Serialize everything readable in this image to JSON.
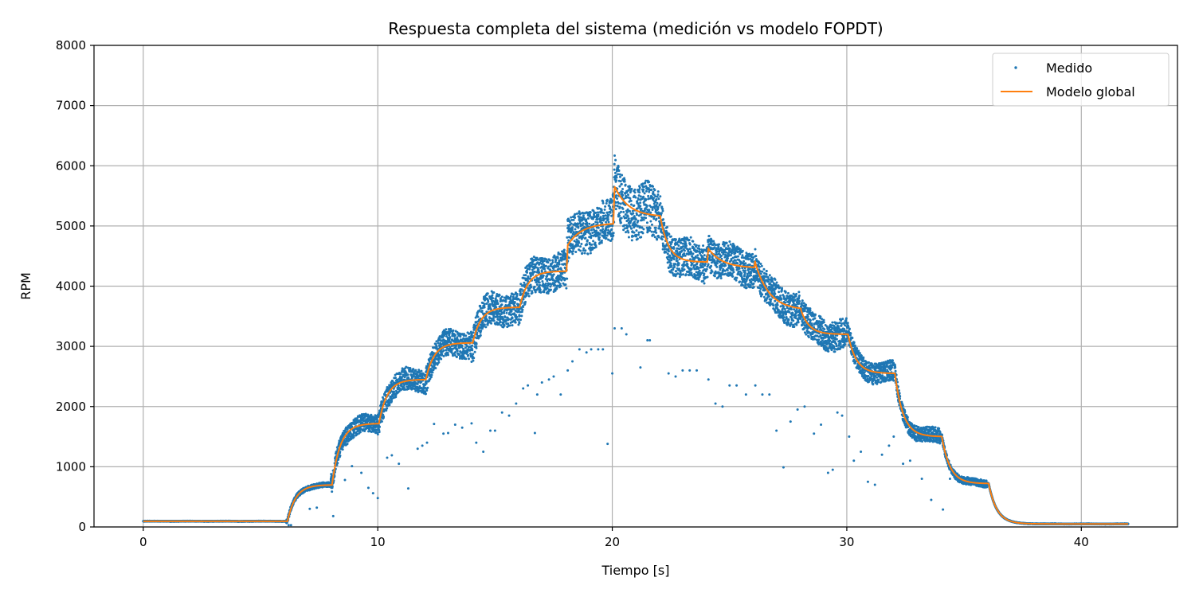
{
  "chart_data": {
    "type": "scatter",
    "title": "Respuesta completa del sistema (medición vs modelo FOPDT)",
    "xlabel": "Tiempo [s]",
    "ylabel": "RPM",
    "xlim": [
      -2.1,
      44.1
    ],
    "ylim": [
      0,
      8000
    ],
    "xticks": [
      0,
      10,
      20,
      30,
      40
    ],
    "yticks": [
      0,
      1000,
      2000,
      3000,
      4000,
      5000,
      6000,
      7000,
      8000
    ],
    "grid": true,
    "legend_position": "top-right",
    "colors": {
      "measured": "#1f77b4",
      "model": "#ff7f0e",
      "grid": "#b0b0b0"
    },
    "series": [
      {
        "name": "Medido",
        "kind": "scatter",
        "stages": [
          {
            "t0": 0,
            "t1": 6.1,
            "level": 95,
            "spread": 10
          },
          {
            "t0": 6.1,
            "t1": 8.0,
            "level": 650,
            "spread": 80
          },
          {
            "t0": 8.0,
            "t1": 10.0,
            "level": 1720,
            "spread": 300
          },
          {
            "t0": 10.0,
            "t1": 12.0,
            "level": 2450,
            "spread": 380
          },
          {
            "t0": 12.0,
            "t1": 14.0,
            "level": 3050,
            "spread": 450
          },
          {
            "t0": 14.0,
            "t1": 16.0,
            "level": 3650,
            "spread": 550
          },
          {
            "t0": 16.0,
            "t1": 18.0,
            "level": 4250,
            "spread": 600
          },
          {
            "t0": 18.0,
            "t1": 20.0,
            "level": 5000,
            "spread": 700
          },
          {
            "t0": 20.0,
            "t1": 22.0,
            "level": 5500,
            "spread": 900
          },
          {
            "t0": 22.0,
            "t1": 24.0,
            "level": 4450,
            "spread": 650
          },
          {
            "t0": 24.0,
            "t1": 26.0,
            "level": 4300,
            "spread": 600
          },
          {
            "t0": 26.0,
            "t1": 28.0,
            "level": 3650,
            "spread": 550
          },
          {
            "t0": 28.0,
            "t1": 30.0,
            "level": 3250,
            "spread": 500
          },
          {
            "t0": 30.0,
            "t1": 32.0,
            "level": 2600,
            "spread": 350
          },
          {
            "t0": 32.0,
            "t1": 34.0,
            "level": 1500,
            "spread": 250
          },
          {
            "t0": 34.0,
            "t1": 36.0,
            "level": 730,
            "spread": 120
          },
          {
            "t0": 36.0,
            "t1": 42.0,
            "level": 50,
            "spread": 10
          }
        ],
        "outliers": [
          [
            6.2,
            30
          ],
          [
            6.3,
            30
          ],
          [
            7.1,
            300
          ],
          [
            7.4,
            320
          ],
          [
            8.1,
            180
          ],
          [
            8.6,
            780
          ],
          [
            8.9,
            1010
          ],
          [
            9.3,
            900
          ],
          [
            9.6,
            650
          ],
          [
            9.8,
            560
          ],
          [
            10.0,
            480
          ],
          [
            10.4,
            1150
          ],
          [
            10.6,
            1190
          ],
          [
            10.9,
            1050
          ],
          [
            11.3,
            640
          ],
          [
            11.7,
            1300
          ],
          [
            11.9,
            1350
          ],
          [
            12.1,
            1400
          ],
          [
            12.4,
            1710
          ],
          [
            12.8,
            1550
          ],
          [
            13.0,
            1560
          ],
          [
            13.3,
            1700
          ],
          [
            13.6,
            1650
          ],
          [
            14.0,
            1720
          ],
          [
            14.2,
            1400
          ],
          [
            14.5,
            1250
          ],
          [
            14.8,
            1600
          ],
          [
            15.0,
            1600
          ],
          [
            15.3,
            1900
          ],
          [
            15.6,
            1850
          ],
          [
            15.9,
            2050
          ],
          [
            16.2,
            2300
          ],
          [
            16.4,
            2350
          ],
          [
            16.7,
            1560
          ],
          [
            16.8,
            2200
          ],
          [
            17.0,
            2400
          ],
          [
            17.3,
            2450
          ],
          [
            17.5,
            2500
          ],
          [
            17.8,
            2200
          ],
          [
            18.1,
            2600
          ],
          [
            18.3,
            2750
          ],
          [
            18.6,
            2950
          ],
          [
            18.9,
            2900
          ],
          [
            19.1,
            2950
          ],
          [
            19.4,
            2950
          ],
          [
            19.6,
            2950
          ],
          [
            19.8,
            1380
          ],
          [
            20.0,
            2550
          ],
          [
            20.1,
            3300
          ],
          [
            20.4,
            3300
          ],
          [
            20.6,
            3200
          ],
          [
            21.2,
            2650
          ],
          [
            21.5,
            3100
          ],
          [
            21.6,
            3100
          ],
          [
            22.4,
            2550
          ],
          [
            22.7,
            2500
          ],
          [
            23.0,
            2600
          ],
          [
            23.3,
            2600
          ],
          [
            23.6,
            2600
          ],
          [
            24.1,
            2450
          ],
          [
            24.4,
            2050
          ],
          [
            24.7,
            2000
          ],
          [
            25.0,
            2350
          ],
          [
            25.3,
            2350
          ],
          [
            25.7,
            2200
          ],
          [
            26.1,
            2350
          ],
          [
            26.4,
            2200
          ],
          [
            26.7,
            2200
          ],
          [
            27.0,
            1600
          ],
          [
            27.3,
            990
          ],
          [
            27.6,
            1750
          ],
          [
            27.9,
            1950
          ],
          [
            28.2,
            2000
          ],
          [
            28.6,
            1550
          ],
          [
            28.9,
            1700
          ],
          [
            29.2,
            900
          ],
          [
            29.4,
            950
          ],
          [
            29.6,
            1900
          ],
          [
            29.8,
            1850
          ],
          [
            30.1,
            1500
          ],
          [
            30.3,
            1100
          ],
          [
            30.6,
            1250
          ],
          [
            30.9,
            750
          ],
          [
            31.2,
            700
          ],
          [
            31.5,
            1200
          ],
          [
            31.8,
            1350
          ],
          [
            32.0,
            1500
          ],
          [
            32.4,
            1050
          ],
          [
            32.7,
            1100
          ],
          [
            33.2,
            800
          ],
          [
            33.6,
            450
          ],
          [
            34.1,
            290
          ],
          [
            34.4,
            800
          ],
          [
            34.8,
            760
          ]
        ]
      },
      {
        "name": "Modelo global",
        "kind": "line",
        "steps": [
          {
            "t": 0,
            "u": 95
          },
          {
            "t": 6.1,
            "u": 700
          },
          {
            "t": 8.0,
            "u": 1720
          },
          {
            "t": 10.0,
            "u": 2450
          },
          {
            "t": 12.0,
            "u": 3060
          },
          {
            "t": 14.0,
            "u": 3650
          },
          {
            "t": 16.0,
            "u": 4250
          },
          {
            "t": 18.0,
            "u": 5050
          },
          {
            "t": 20.0,
            "u": 5150
          },
          {
            "t": 22.0,
            "u": 4400
          },
          {
            "t": 24.0,
            "u": 4300
          },
          {
            "t": 26.0,
            "u": 3600
          },
          {
            "t": 28.0,
            "u": 3200
          },
          {
            "t": 30.0,
            "u": 2550
          },
          {
            "t": 32.0,
            "u": 1500
          },
          {
            "t": 34.0,
            "u": 720
          },
          {
            "t": 36.0,
            "u": 50
          }
        ],
        "overshoots": [
          {
            "t": 18.0,
            "v": 4650
          },
          {
            "t": 20.0,
            "v": 5700
          },
          {
            "t": 24.0,
            "v": 4650
          },
          {
            "t": 26.0,
            "v": 4450
          }
        ],
        "t_end": 42.0,
        "time_constant": 0.35,
        "dead_time": 0.05
      }
    ],
    "legend": [
      "Medido",
      "Modelo global"
    ]
  }
}
